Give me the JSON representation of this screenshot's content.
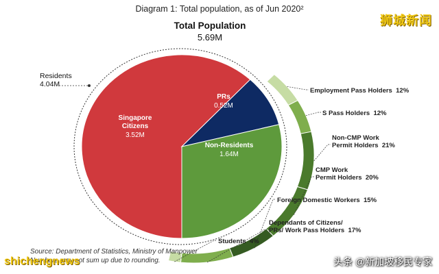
{
  "header": {
    "diagram_title": "Diagram 1: Total population, as of Jun 2020²",
    "chart_title": "Total Population",
    "chart_total": "5.69M"
  },
  "residents": {
    "label": "Residents",
    "value": "4.04M"
  },
  "footer": {
    "source": "Source: Department of Statistics, Ministry of Manpower",
    "note": "Numbers may not sum up due to rounding."
  },
  "watermarks": {
    "top_right": "狮城新闻",
    "bottom_left": "shichengnews",
    "bottom_right": "头条 @新加坡移民专家"
  },
  "colors": {
    "citizens": "#d0393d",
    "prs": "#0e2a63",
    "non_residents": "#5e9a3c",
    "ring_light": "#c6dca4",
    "ring_mid": "#7fae4d",
    "ring_dark": "#4a7a2c",
    "ring_darkest": "#355b22"
  },
  "chart_data": [
    {
      "type": "pie",
      "title": "Total Population",
      "total": "5.69M",
      "slices": [
        {
          "name": "Singapore Citizens",
          "value": 3.52,
          "label": "Singapore\nCitizens",
          "value_label": "3.52M"
        },
        {
          "name": "PRs",
          "value": 0.52,
          "label": "PRs",
          "value_label": "0.52M"
        },
        {
          "name": "Non-Residents",
          "value": 1.64,
          "label": "Non-Residents",
          "value_label": "1.64M"
        }
      ]
    },
    {
      "type": "pie",
      "title": "",
      "slices": [
        {
          "name": "Employment Pass Holders",
          "value": 12,
          "label": "Employment Pass Holders",
          "value_label": "12%"
        },
        {
          "name": "S Pass Holders",
          "value": 12,
          "label": "S Pass Holders",
          "value_label": "12%"
        },
        {
          "name": "Non-CMP Work Permit Holders",
          "value": 21,
          "label": "Non-CMP Work\nPermit Holders",
          "value_label": "21%"
        },
        {
          "name": "CMP Work Permit Holders",
          "value": 20,
          "label": "CMP Work\nPermit Holders",
          "value_label": "20%"
        },
        {
          "name": "Foreign Domestic Workers",
          "value": 15,
          "label": "Foreign Domestic Workers",
          "value_label": "15%"
        },
        {
          "name": "Dependants of Citizens/ PRs/ Work Pass Holders",
          "value": 17,
          "label": "Dependants of Citizens/\nPRs/ Work Pass Holders",
          "value_label": "17%"
        },
        {
          "name": "Students",
          "value": 4,
          "label": "Students",
          "value_label": "4%"
        }
      ]
    }
  ]
}
